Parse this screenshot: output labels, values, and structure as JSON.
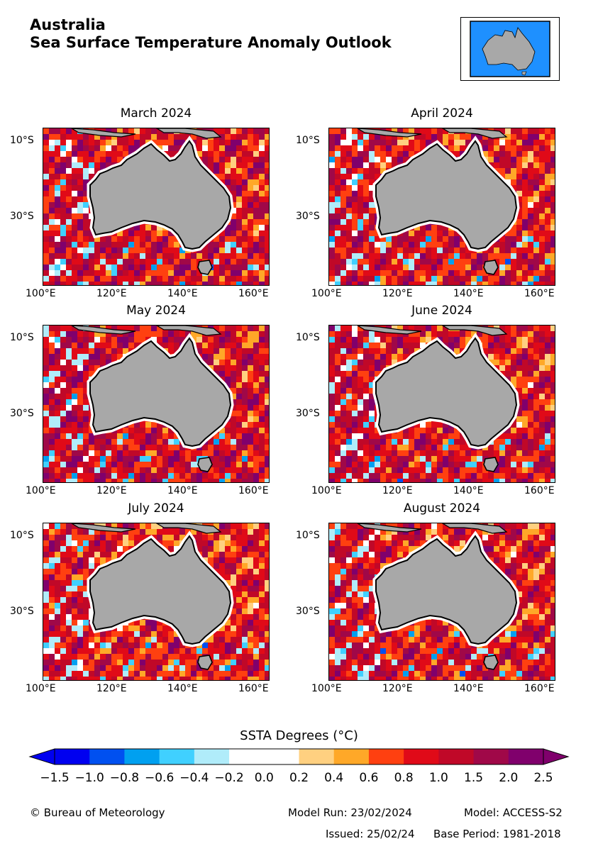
{
  "title": "Australia",
  "subtitle": "Sea Surface Temperature Anomaly Outlook",
  "panels": [
    {
      "title": "March 2024",
      "seed": 3,
      "warm": 0.55
    },
    {
      "title": "April 2024",
      "seed": 11,
      "warm": 0.5
    },
    {
      "title": "May 2024",
      "seed": 23,
      "warm": 0.6
    },
    {
      "title": "June 2024",
      "seed": 37,
      "warm": 0.55
    },
    {
      "title": "July 2024",
      "seed": 51,
      "warm": 0.45
    },
    {
      "title": "August 2024",
      "seed": 67,
      "warm": 0.5
    }
  ],
  "axis": {
    "y_ticks": [
      "10°S",
      "30°S"
    ],
    "x_ticks": [
      "100°E",
      "120°E",
      "140°E",
      "160°E"
    ]
  },
  "colorbar": {
    "title": "SSTA Degrees (°C)",
    "ticks": [
      "−1.5",
      "−1.0",
      "−0.8",
      "−0.6",
      "−0.4",
      "−0.2",
      "0.0",
      "0.2",
      "0.4",
      "0.6",
      "0.8",
      "1.0",
      "1.5",
      "2.0",
      "2.5"
    ],
    "colors": [
      "#0000f0",
      "#0050f0",
      "#00a0f0",
      "#40d0ff",
      "#b0ecfa",
      "#ffffff",
      "#ffffff",
      "#ffd080",
      "#ffa828",
      "#ff4010",
      "#e00a18",
      "#c00828",
      "#a00848",
      "#80006c"
    ],
    "under_color": "#0000f0",
    "over_color": "#80006c"
  },
  "land_color": "#a8a8a8",
  "inset_ocean_color": "#1e90ff",
  "footer": {
    "copyright": "© Bureau of Meteorology",
    "model_run": "Model Run: 23/02/2024",
    "model": "Model: ACCESS-S2",
    "issued": "Issued: 25/02/24",
    "base_period": "Base Period: 1981-2018"
  }
}
